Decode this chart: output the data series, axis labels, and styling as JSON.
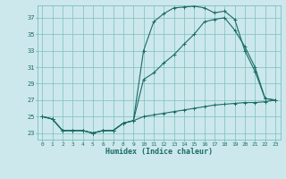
{
  "xlabel": "Humidex (Indice chaleur)",
  "ylabel": "",
  "background_color": "#cce8ed",
  "grid_color": "#7bbfba",
  "line_color": "#1a6b65",
  "xlim": [
    -0.5,
    23.5
  ],
  "ylim": [
    22.2,
    38.5
  ],
  "xticks": [
    0,
    1,
    2,
    3,
    4,
    5,
    6,
    7,
    8,
    9,
    10,
    11,
    12,
    13,
    14,
    15,
    16,
    17,
    18,
    19,
    20,
    21,
    22,
    23
  ],
  "yticks": [
    23,
    25,
    27,
    29,
    31,
    33,
    35,
    37
  ],
  "line1_x": [
    0,
    1,
    2,
    3,
    4,
    5,
    6,
    7,
    8,
    9,
    10,
    11,
    12,
    13,
    14,
    15,
    16,
    17,
    18,
    19,
    20,
    21,
    22,
    23
  ],
  "line1_y": [
    25.0,
    24.7,
    23.3,
    23.3,
    23.3,
    23.0,
    23.3,
    23.3,
    24.2,
    24.5,
    33.0,
    36.5,
    37.5,
    38.2,
    38.3,
    38.4,
    38.2,
    37.6,
    37.8,
    36.8,
    33.0,
    30.5,
    27.2,
    27.0
  ],
  "line2_x": [
    0,
    1,
    2,
    3,
    4,
    5,
    6,
    7,
    8,
    9,
    10,
    11,
    12,
    13,
    14,
    15,
    16,
    17,
    18,
    19,
    20,
    21,
    22,
    23
  ],
  "line2_y": [
    25.0,
    24.7,
    23.3,
    23.3,
    23.3,
    23.0,
    23.3,
    23.3,
    24.2,
    24.5,
    29.5,
    30.3,
    31.5,
    32.5,
    33.8,
    35.0,
    36.5,
    36.8,
    37.0,
    35.5,
    33.5,
    31.0,
    27.2,
    27.0
  ],
  "line3_x": [
    0,
    1,
    2,
    3,
    4,
    5,
    6,
    7,
    8,
    9,
    10,
    11,
    12,
    13,
    14,
    15,
    16,
    17,
    18,
    19,
    20,
    21,
    22,
    23
  ],
  "line3_y": [
    25.0,
    24.7,
    23.3,
    23.3,
    23.3,
    23.0,
    23.3,
    23.3,
    24.2,
    24.5,
    25.0,
    25.2,
    25.4,
    25.6,
    25.8,
    26.0,
    26.2,
    26.4,
    26.5,
    26.6,
    26.7,
    26.7,
    26.8,
    27.0
  ]
}
